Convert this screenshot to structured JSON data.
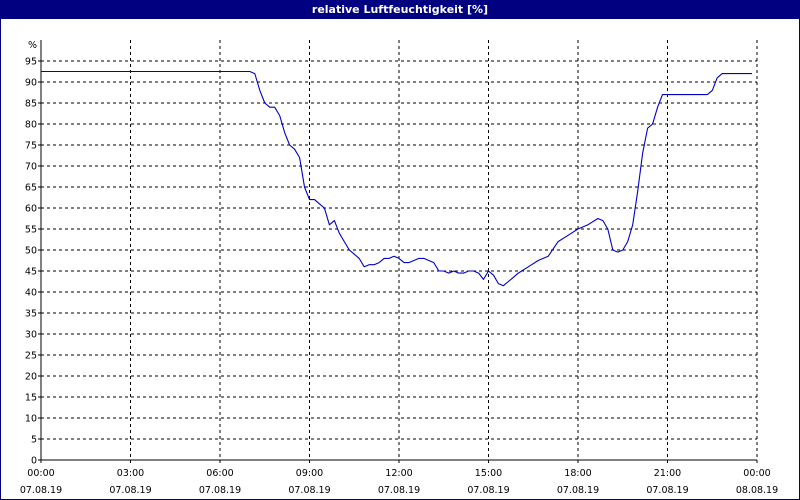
{
  "window": {
    "title": "relative Luftfeuchtigkeit [%]",
    "title_bg": "#000080",
    "title_fg": "#ffffff"
  },
  "chart_data": {
    "type": "line",
    "title": "relative Luftfeuchtigkeit [%]",
    "ylabel": "%",
    "ylim": [
      0,
      100
    ],
    "xlim": [
      "2019-08-07 00:00",
      "2019-08-08 00:00"
    ],
    "grid": true,
    "y_ticks": [
      "0",
      "5",
      "10",
      "15",
      "20",
      "25",
      "30",
      "35",
      "40",
      "45",
      "50",
      "55",
      "60",
      "65",
      "70",
      "75",
      "80",
      "85",
      "90",
      "95"
    ],
    "x_ticks": [
      {
        "time": "00:00",
        "date": "07.08.19"
      },
      {
        "time": "03:00",
        "date": "07.08.19"
      },
      {
        "time": "06:00",
        "date": "07.08.19"
      },
      {
        "time": "09:00",
        "date": "07.08.19"
      },
      {
        "time": "12:00",
        "date": "07.08.19"
      },
      {
        "time": "15:00",
        "date": "07.08.19"
      },
      {
        "time": "18:00",
        "date": "07.08.19"
      },
      {
        "time": "21:00",
        "date": "07.08.19"
      },
      {
        "time": "00:00",
        "date": "08.08.19"
      }
    ],
    "line_color": "#0000c8",
    "series": [
      {
        "x": [
          "00:00",
          "07:00",
          "07:10",
          "07:20",
          "07:30",
          "07:40",
          "07:50",
          "08:00",
          "08:10",
          "08:20",
          "08:30",
          "08:40",
          "08:50",
          "09:00",
          "09:10",
          "09:20",
          "09:30",
          "09:40",
          "09:50",
          "10:00",
          "10:10",
          "10:20",
          "10:30",
          "10:40",
          "10:50",
          "11:00",
          "11:10",
          "11:20",
          "11:30",
          "11:40",
          "11:50",
          "12:00",
          "12:10",
          "12:20",
          "12:30",
          "12:40",
          "12:50",
          "13:00",
          "13:10",
          "13:20",
          "13:30",
          "13:40",
          "13:50",
          "14:00",
          "14:10",
          "14:20",
          "14:30",
          "14:40",
          "14:50",
          "15:00",
          "15:10",
          "15:20",
          "15:30",
          "15:40",
          "15:50",
          "16:00",
          "16:20",
          "16:40",
          "17:00",
          "17:20",
          "17:40",
          "18:00",
          "18:20",
          "18:40",
          "18:50",
          "19:00",
          "19:10",
          "19:20",
          "19:30",
          "19:40",
          "19:50",
          "20:00",
          "20:10",
          "20:20",
          "20:30",
          "20:40",
          "20:50",
          "21:00",
          "22:00",
          "22:10",
          "22:20",
          "22:30",
          "22:40",
          "22:50",
          "23:00",
          "23:50"
        ],
        "y": [
          92.5,
          92.5,
          92,
          88,
          85,
          84,
          84,
          82,
          78,
          75,
          74,
          72,
          65,
          62,
          62,
          61,
          60,
          56,
          57,
          54,
          52,
          50,
          49,
          48,
          46,
          46.5,
          46.5,
          47,
          48,
          48,
          48.5,
          48,
          47,
          47,
          47.5,
          48,
          48,
          47.5,
          47,
          45,
          45,
          44.5,
          45,
          44.5,
          44.5,
          45,
          45,
          44.5,
          43,
          45,
          44,
          42,
          41.5,
          42.5,
          43.5,
          44.5,
          46,
          47.5,
          48.5,
          52,
          53.5,
          55,
          56,
          57.5,
          57,
          55,
          50,
          49.5,
          50,
          52,
          56,
          64,
          73,
          79,
          80,
          84,
          87,
          87,
          87,
          87,
          87,
          88,
          91,
          92,
          92,
          92
        ]
      }
    ]
  }
}
